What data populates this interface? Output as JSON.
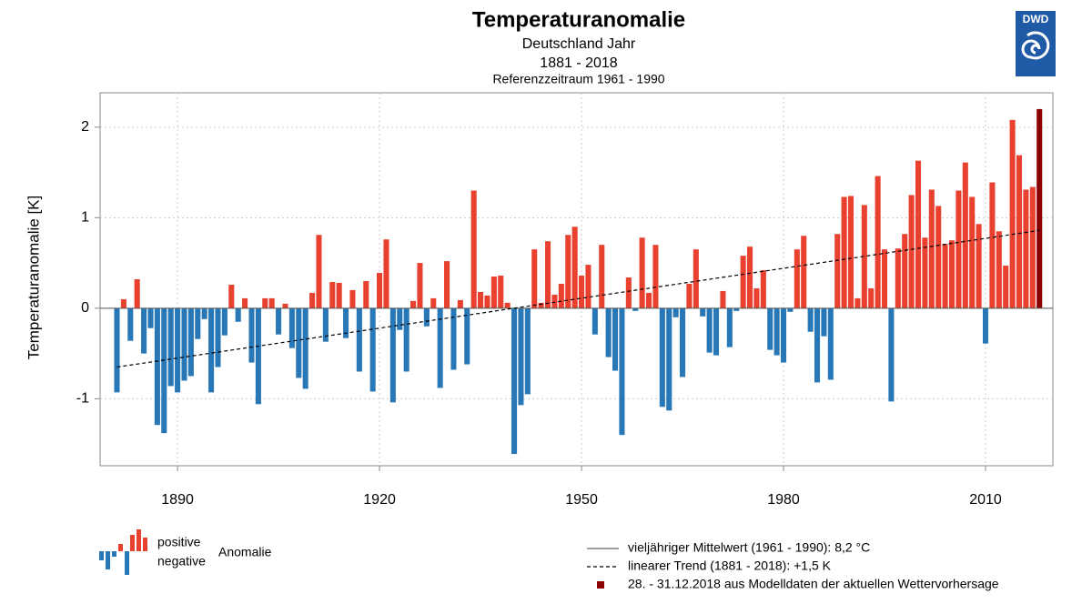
{
  "chart_data": {
    "type": "bar",
    "title": "Temperaturanomalie",
    "subtitle": "Deutschland Jahr",
    "period": "1881 - 2018",
    "reference": "Referenzzeitraum 1961 - 1990",
    "ylabel": "Temperaturanomalie [K]",
    "logo": "DWD",
    "x": [
      1881,
      1882,
      1883,
      1884,
      1885,
      1886,
      1887,
      1888,
      1889,
      1890,
      1891,
      1892,
      1893,
      1894,
      1895,
      1896,
      1897,
      1898,
      1899,
      1900,
      1901,
      1902,
      1903,
      1904,
      1905,
      1906,
      1907,
      1908,
      1909,
      1910,
      1911,
      1912,
      1913,
      1914,
      1915,
      1916,
      1917,
      1918,
      1919,
      1920,
      1921,
      1922,
      1923,
      1924,
      1925,
      1926,
      1927,
      1928,
      1929,
      1930,
      1931,
      1932,
      1933,
      1934,
      1935,
      1936,
      1937,
      1938,
      1939,
      1940,
      1941,
      1942,
      1943,
      1944,
      1945,
      1946,
      1947,
      1948,
      1949,
      1950,
      1951,
      1952,
      1953,
      1954,
      1955,
      1956,
      1957,
      1958,
      1959,
      1960,
      1961,
      1962,
      1963,
      1964,
      1965,
      1966,
      1967,
      1968,
      1969,
      1970,
      1971,
      1972,
      1973,
      1974,
      1975,
      1976,
      1977,
      1978,
      1979,
      1980,
      1981,
      1982,
      1983,
      1984,
      1985,
      1986,
      1987,
      1988,
      1989,
      1990,
      1991,
      1992,
      1993,
      1994,
      1995,
      1996,
      1997,
      1998,
      1999,
      2000,
      2001,
      2002,
      2003,
      2004,
      2005,
      2006,
      2007,
      2008,
      2009,
      2010,
      2011,
      2012,
      2013,
      2014,
      2015,
      2016,
      2017,
      2018
    ],
    "values": [
      -0.93,
      0.1,
      -0.36,
      0.32,
      -0.5,
      -0.22,
      -1.29,
      -1.38,
      -0.86,
      -0.93,
      -0.8,
      -0.75,
      -0.34,
      -0.12,
      -0.93,
      -0.65,
      -0.3,
      0.26,
      -0.15,
      0.11,
      -0.6,
      -1.06,
      0.11,
      0.11,
      -0.29,
      0.05,
      -0.44,
      -0.77,
      -0.89,
      0.17,
      0.81,
      -0.37,
      0.29,
      0.28,
      -0.33,
      0.2,
      -0.7,
      0.3,
      -0.92,
      0.39,
      0.76,
      -1.04,
      -0.24,
      -0.7,
      0.08,
      0.5,
      -0.2,
      0.11,
      -0.88,
      0.52,
      -0.68,
      0.09,
      -0.62,
      1.3,
      0.18,
      0.14,
      0.35,
      0.36,
      0.06,
      -1.61,
      -1.07,
      -0.95,
      0.65,
      0.06,
      0.74,
      0.15,
      0.27,
      0.81,
      0.9,
      0.36,
      0.48,
      -0.29,
      0.7,
      -0.54,
      -0.69,
      -1.4,
      0.34,
      -0.03,
      0.78,
      0.17,
      0.7,
      -1.09,
      -1.13,
      -0.1,
      -0.76,
      0.27,
      0.65,
      -0.09,
      -0.49,
      -0.52,
      0.19,
      -0.43,
      -0.03,
      0.58,
      0.68,
      0.22,
      0.42,
      -0.46,
      -0.52,
      -0.6,
      -0.04,
      0.65,
      0.8,
      -0.26,
      -0.82,
      -0.31,
      -0.79,
      0.82,
      1.23,
      1.24,
      0.11,
      1.14,
      0.22,
      1.46,
      0.65,
      -1.03,
      0.66,
      0.82,
      1.25,
      1.63,
      0.78,
      1.31,
      1.13,
      0.71,
      0.75,
      1.3,
      1.61,
      1.23,
      0.93,
      -0.39,
      1.39,
      0.85,
      0.47,
      2.08,
      1.69,
      1.31,
      1.34,
      2.2
    ],
    "positive_color": "#e8412f",
    "negative_color": "#2878b8",
    "trend": {
      "x": [
        1881,
        2018
      ],
      "values": [
        -0.65,
        0.86
      ]
    },
    "xlim": [
      1878.5,
      2020
    ],
    "ylim": [
      -1.74,
      2.38
    ],
    "xticks": [
      1890,
      1920,
      1950,
      1980,
      2010
    ],
    "yticks": [
      -1,
      0,
      1,
      2
    ],
    "grid": true,
    "anomaly_legend": {
      "positive": "positive",
      "negative": "negative",
      "label": "Anomalie"
    },
    "legend": [
      {
        "label": "vieljähriger Mittelwert (1961 - 1990): 8,2 °C",
        "marker": "line",
        "color": "#666666"
      },
      {
        "label": "linearer Trend (1881 - 2018): +1,5 K",
        "marker": "dashed",
        "color": "#000000"
      },
      {
        "label": "28. - 31.12.2018 aus Modelldaten der aktuellen Wettervorhersage",
        "marker": "square",
        "color": "#8b0000",
        "x": 2018
      }
    ]
  }
}
